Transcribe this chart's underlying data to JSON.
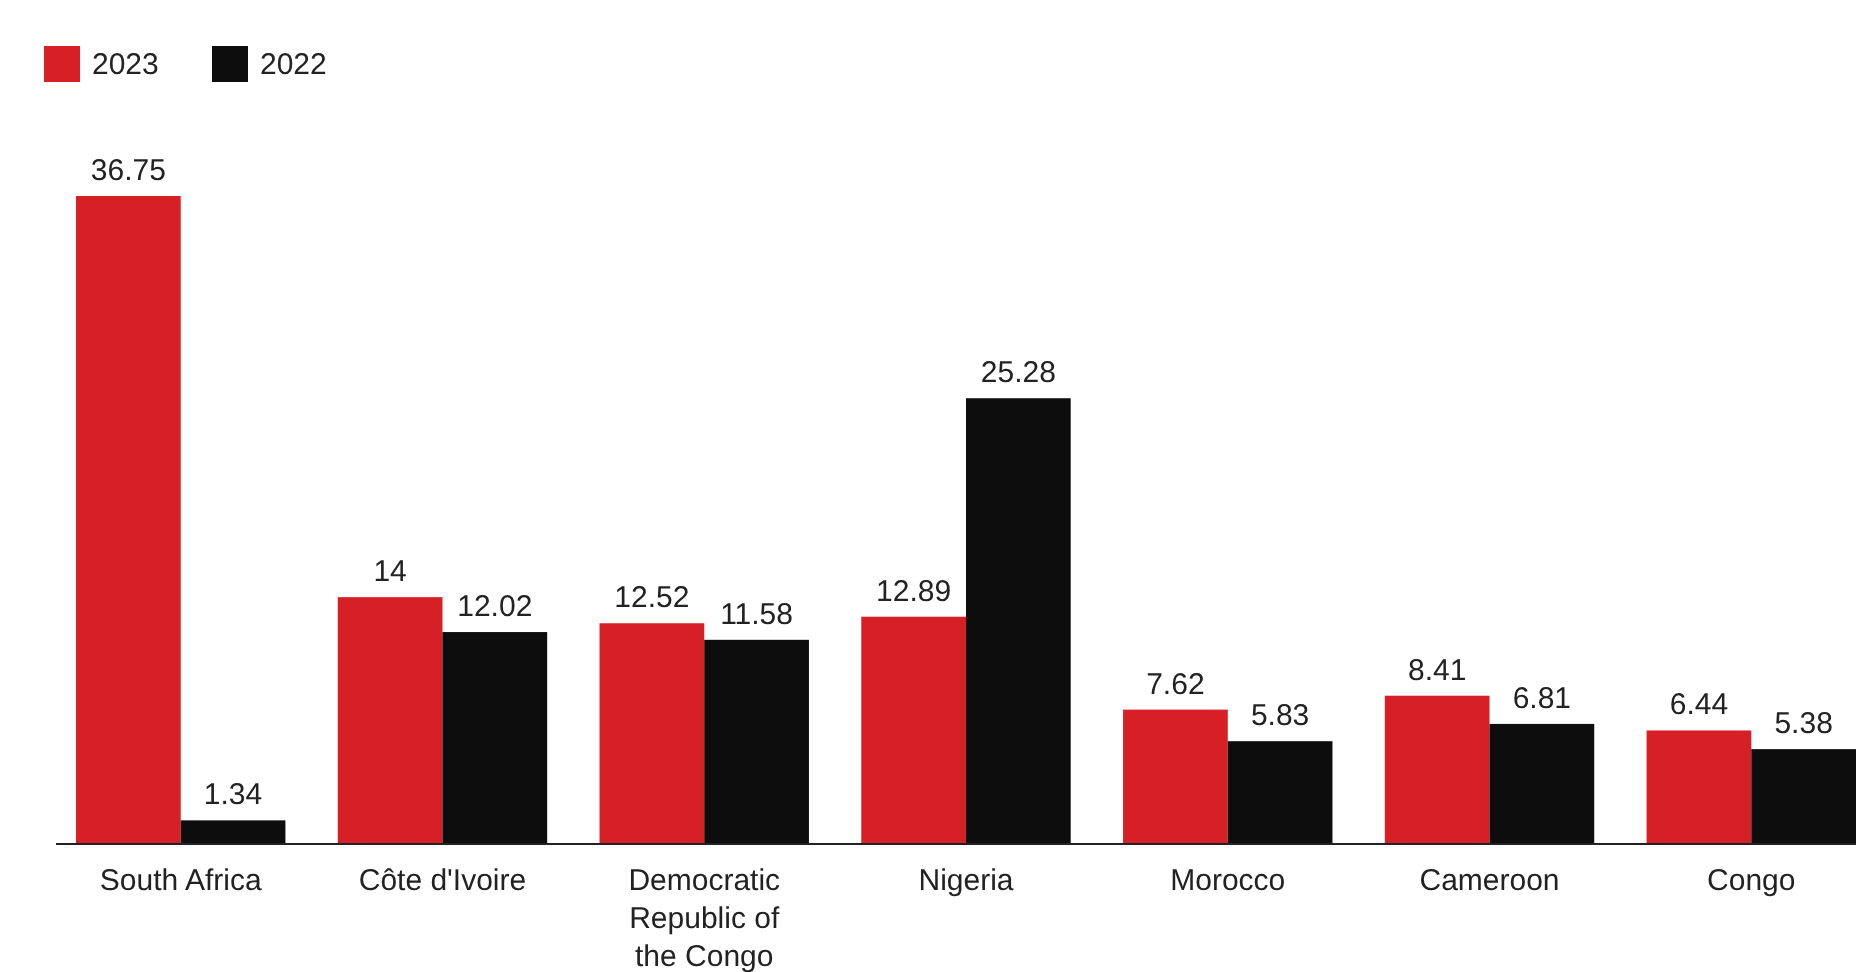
{
  "chart_data": {
    "type": "bar",
    "categories": [
      "South Africa",
      "Côte d'Ivoire",
      "Democratic Republic of the Congo",
      "Nigeria",
      "Morocco",
      "Cameroon",
      "Congo"
    ],
    "series": [
      {
        "name": "2023",
        "color": "#d71f26",
        "values": [
          36.75,
          14,
          12.52,
          12.89,
          7.62,
          8.41,
          6.44
        ]
      },
      {
        "name": "2022",
        "color": "#0d0d0d",
        "values": [
          1.34,
          12.02,
          11.58,
          25.28,
          5.83,
          6.81,
          5.38
        ]
      }
    ],
    "data_labels": true,
    "legend": "top left",
    "grid": false
  }
}
